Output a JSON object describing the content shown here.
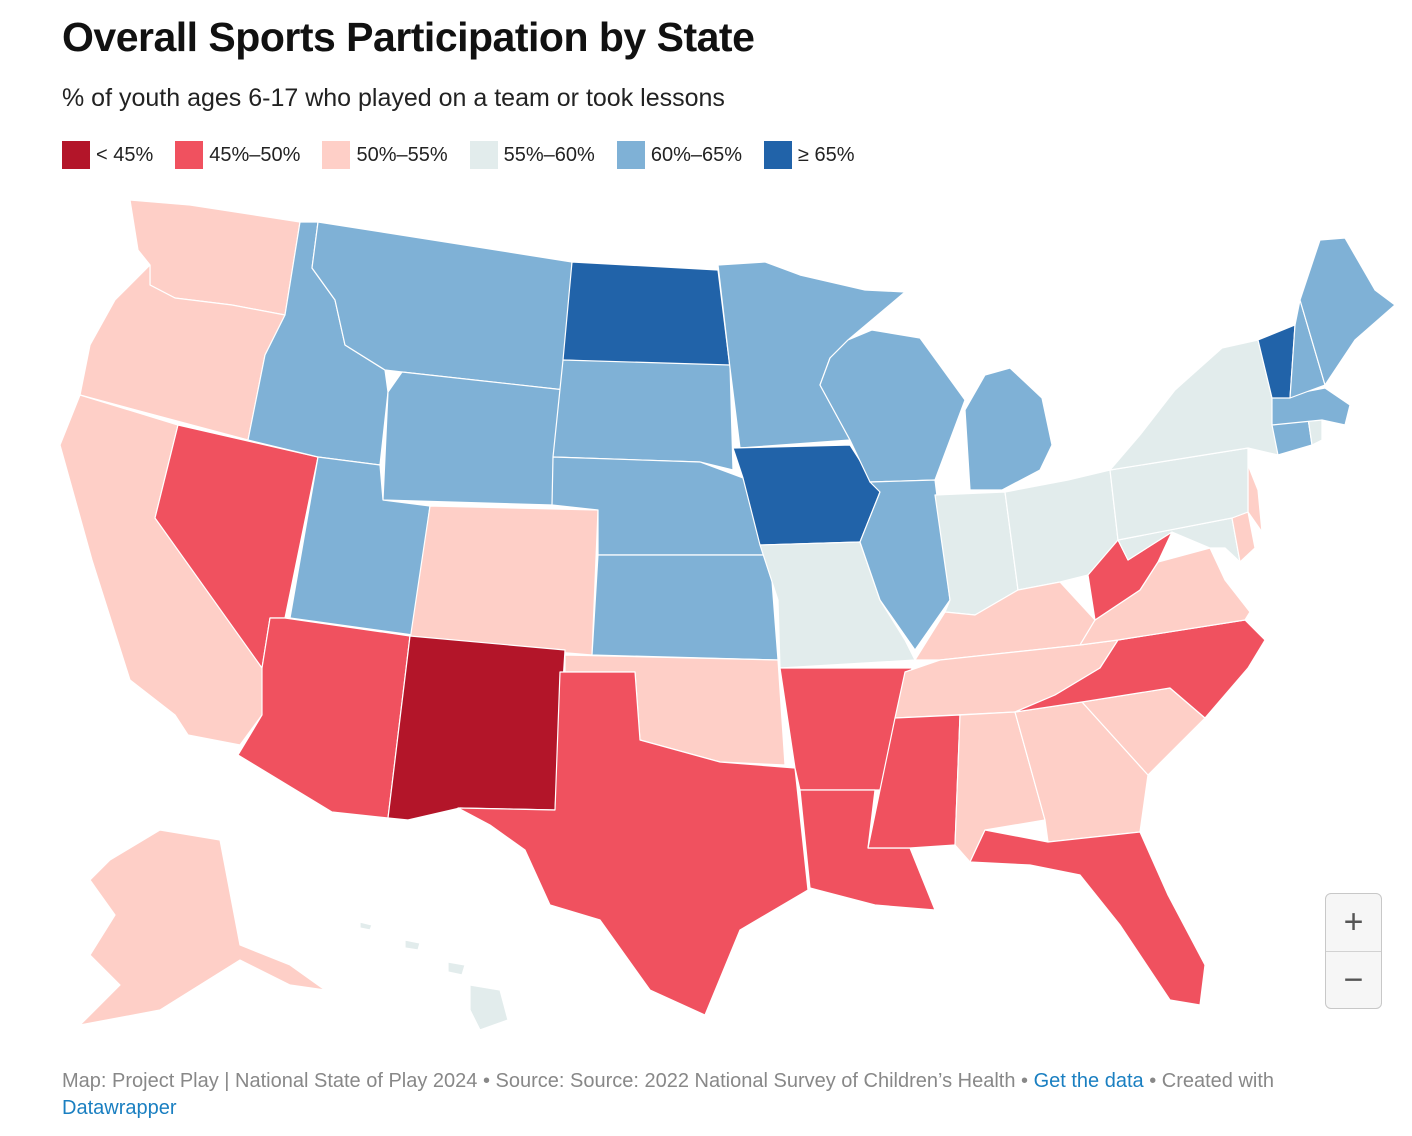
{
  "title": "Overall Sports Participation by State",
  "subtitle": "% of youth ages 6-17 who played on a team or took lessons",
  "legend": [
    {
      "label": "< 45%",
      "color": "#b31529"
    },
    {
      "label": "45%–50%",
      "color": "#f0515f"
    },
    {
      "label": "50%–55%",
      "color": "#fecfc7"
    },
    {
      "label": "55%–60%",
      "color": "#e2ecec"
    },
    {
      "label": "60%–65%",
      "color": "#7fb1d6"
    },
    {
      "label": "≥ 65%",
      "color": "#2163a9"
    }
  ],
  "map_data": {
    "type": "choropleth",
    "region": "United States",
    "states": [
      {
        "name": "Washington",
        "bin": "50%–55%"
      },
      {
        "name": "Oregon",
        "bin": "50%–55%"
      },
      {
        "name": "California",
        "bin": "50%–55%"
      },
      {
        "name": "Nevada",
        "bin": "45%–50%"
      },
      {
        "name": "Idaho",
        "bin": "60%–65%"
      },
      {
        "name": "Montana",
        "bin": "60%–65%"
      },
      {
        "name": "Wyoming",
        "bin": "60%–65%"
      },
      {
        "name": "Utah",
        "bin": "60%–65%"
      },
      {
        "name": "Colorado",
        "bin": "50%–55%"
      },
      {
        "name": "Arizona",
        "bin": "45%–50%"
      },
      {
        "name": "New Mexico",
        "bin": "< 45%"
      },
      {
        "name": "North Dakota",
        "bin": "≥ 65%"
      },
      {
        "name": "South Dakota",
        "bin": "60%–65%"
      },
      {
        "name": "Nebraska",
        "bin": "60%–65%"
      },
      {
        "name": "Kansas",
        "bin": "60%–65%"
      },
      {
        "name": "Oklahoma",
        "bin": "50%–55%"
      },
      {
        "name": "Texas",
        "bin": "45%–50%"
      },
      {
        "name": "Minnesota",
        "bin": "60%–65%"
      },
      {
        "name": "Iowa",
        "bin": "≥ 65%"
      },
      {
        "name": "Missouri",
        "bin": "55%–60%"
      },
      {
        "name": "Arkansas",
        "bin": "45%–50%"
      },
      {
        "name": "Louisiana",
        "bin": "45%–50%"
      },
      {
        "name": "Wisconsin",
        "bin": "60%–65%"
      },
      {
        "name": "Illinois",
        "bin": "60%–65%"
      },
      {
        "name": "Michigan",
        "bin": "60%–65%"
      },
      {
        "name": "Indiana",
        "bin": "55%–60%"
      },
      {
        "name": "Ohio",
        "bin": "55%–60%"
      },
      {
        "name": "Kentucky",
        "bin": "50%–55%"
      },
      {
        "name": "Tennessee",
        "bin": "50%–55%"
      },
      {
        "name": "Mississippi",
        "bin": "45%–50%"
      },
      {
        "name": "Alabama",
        "bin": "50%–55%"
      },
      {
        "name": "Georgia",
        "bin": "50%–55%"
      },
      {
        "name": "Florida",
        "bin": "45%–50%"
      },
      {
        "name": "South Carolina",
        "bin": "50%–55%"
      },
      {
        "name": "North Carolina",
        "bin": "45%–50%"
      },
      {
        "name": "Virginia",
        "bin": "50%–55%"
      },
      {
        "name": "West Virginia",
        "bin": "45%–50%"
      },
      {
        "name": "Maryland",
        "bin": "55%–60%"
      },
      {
        "name": "Delaware",
        "bin": "50%–55%"
      },
      {
        "name": "New Jersey",
        "bin": "50%–55%"
      },
      {
        "name": "Pennsylvania",
        "bin": "55%–60%"
      },
      {
        "name": "New York",
        "bin": "55%–60%"
      },
      {
        "name": "Connecticut",
        "bin": "60%–65%"
      },
      {
        "name": "Rhode Island",
        "bin": "55%–60%"
      },
      {
        "name": "Massachusetts",
        "bin": "60%–65%"
      },
      {
        "name": "Vermont",
        "bin": "≥ 65%"
      },
      {
        "name": "New Hampshire",
        "bin": "60%–65%"
      },
      {
        "name": "Maine",
        "bin": "60%–65%"
      },
      {
        "name": "Alaska",
        "bin": "50%–55%"
      },
      {
        "name": "Hawaii",
        "bin": "55%–60%"
      }
    ]
  },
  "zoom": {
    "in_label": "+",
    "out_label": "−"
  },
  "footer": {
    "text": "Map: Project Play | National State of Play 2024 • Source: Source: 2022 National Survey of Children’s Health • ",
    "link_data": "Get the data",
    "sep": " • Created with ",
    "link_dw": "Datawrapper"
  }
}
